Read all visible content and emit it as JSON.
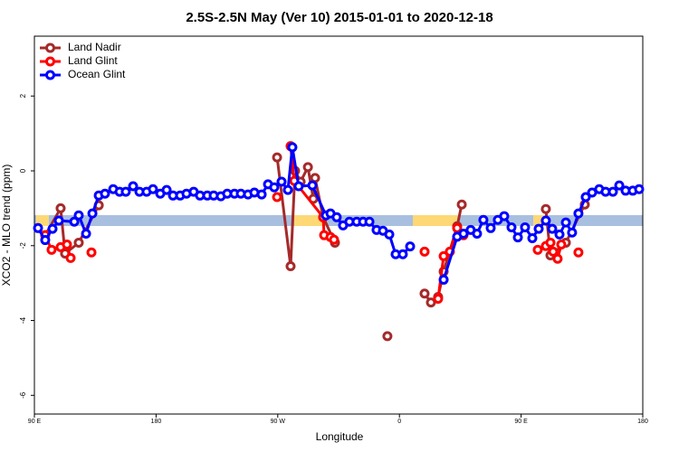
{
  "chart_data": {
    "type": "line",
    "title": "2.5S-2.5N May (Ver 10)   2015-01-01 to 2020-12-18",
    "x_label": "Longitude",
    "y_label": "XCO2 - MLO trend (ppm)",
    "xlim": [
      90,
      540
    ],
    "ylim": [
      -6.5,
      3.6
    ],
    "xticks": [
      {
        "value": 90,
        "label": "90 E"
      },
      180,
      {
        "value": 270,
        "label": "90 W"
      },
      {
        "value": 360,
        "label": "0"
      },
      {
        "value": 450,
        "label": "90 E"
      },
      {
        "value": 540,
        "label": "180"
      }
    ],
    "yticks": [
      2,
      0,
      -2,
      -4,
      -6
    ],
    "legend": "top-left",
    "series": [
      {
        "name": "Land Nadir",
        "color": "#a52a2a",
        "x": [
          98.0,
          109.4,
          112.7,
          122.8,
          137.6,
          null,
          269.5,
          279.5,
          282.8,
          286.9,
          292.3,
          296.3,
          297.6,
          303.6,
          312.3,
          null,
          351.1,
          null,
          378.6,
          383.3,
          388.6,
          392.7,
          402.7,
          406.1,
          null,
          468.3,
          471.7,
          483.1,
          497.1
        ],
        "values": [
          -1.72,
          -1.0,
          -2.21,
          -1.92,
          -0.92,
          null,
          0.36,
          -2.55,
          0.0,
          -0.29,
          0.1,
          -0.75,
          -0.19,
          -1.24,
          -1.92,
          null,
          -4.42,
          null,
          -3.28,
          -3.52,
          -3.37,
          -2.69,
          -1.48,
          -0.9,
          null,
          -1.02,
          -2.26,
          -1.92,
          -0.9
        ]
      },
      {
        "name": "Land Glint",
        "color": "#ff0000",
        "x": [
          98.0,
          102.7,
          109.4,
          114.1,
          116.8,
          null,
          132.2,
          null,
          269.5,
          null,
          279.5,
          282.2,
          303.6,
          304.3,
          309.0,
          311.6,
          null,
          378.6,
          null,
          388.6,
          392.7,
          397.3,
          402.7,
          407.4,
          null,
          462.3,
          468.3,
          471.7,
          473.7,
          477.0,
          479.7,
          null,
          492.4
        ],
        "values": [
          -1.72,
          -2.11,
          -2.04,
          -1.97,
          -2.33,
          null,
          -2.18,
          null,
          -0.7,
          null,
          0.66,
          -0.27,
          -1.24,
          -1.72,
          -1.77,
          -1.84,
          null,
          -2.16,
          null,
          -3.42,
          -2.28,
          -2.16,
          -1.53,
          -1.72,
          null,
          -2.11,
          -2.01,
          -1.92,
          -2.16,
          -2.35,
          -1.97,
          null,
          -2.18
        ]
      },
      {
        "name": "Ocean Glint",
        "color": "#0000ff",
        "x": [
          92.7,
          98.0,
          103.4,
          108.1,
          119.5,
          122.8,
          128.2,
          132.9,
          137.6,
          142.2,
          148.3,
          153.0,
          157.6,
          163.0,
          167.7,
          173.0,
          177.7,
          183.1,
          187.8,
          192.5,
          197.8,
          202.5,
          207.8,
          212.5,
          217.9,
          222.6,
          227.9,
          232.6,
          238.0,
          242.7,
          248.0,
          252.7,
          258.1,
          262.8,
          267.4,
          272.8,
          277.5,
          280.8,
          285.5,
          295.6,
          305.6,
          309.0,
          313.6,
          318.3,
          323.0,
          328.4,
          333.1,
          337.8,
          343.1,
          347.8,
          352.5,
          357.2,
          362.5,
          367.9,
          null,
          392.7,
          402.7,
          407.4,
          412.7,
          417.4,
          422.1,
          427.5,
          432.8,
          437.5,
          442.9,
          447.6,
          452.9,
          458.3,
          463.0,
          468.3,
          473.0,
          478.4,
          483.1,
          487.7,
          492.4,
          497.8,
          502.5,
          507.8,
          512.5,
          517.9,
          522.6,
          527.3,
          532.6,
          537.3
        ],
        "values": [
          -1.53,
          -1.85,
          -1.55,
          -1.33,
          -1.36,
          -1.19,
          -1.68,
          -1.14,
          -0.66,
          -0.61,
          -0.49,
          -0.56,
          -0.56,
          -0.41,
          -0.56,
          -0.56,
          -0.49,
          -0.61,
          -0.51,
          -0.66,
          -0.66,
          -0.61,
          -0.56,
          -0.66,
          -0.66,
          -0.66,
          -0.68,
          -0.61,
          -0.61,
          -0.61,
          -0.63,
          -0.58,
          -0.63,
          -0.36,
          -0.44,
          -0.29,
          -0.51,
          0.63,
          -0.41,
          -0.39,
          -1.19,
          -1.14,
          -1.24,
          -1.46,
          -1.36,
          -1.36,
          -1.36,
          -1.36,
          -1.58,
          -1.6,
          -1.7,
          -2.23,
          -2.23,
          -2.02,
          null,
          -2.91,
          -1.76,
          -1.68,
          -1.58,
          -1.68,
          -1.31,
          -1.53,
          -1.31,
          -1.21,
          -1.51,
          -1.78,
          -1.51,
          -1.8,
          -1.55,
          -1.33,
          -1.55,
          -1.7,
          -1.38,
          -1.65,
          -1.14,
          -0.7,
          -0.58,
          -0.49,
          -0.56,
          -0.56,
          -0.39,
          -0.53,
          -0.53,
          -0.49
        ]
      }
    ]
  }
}
